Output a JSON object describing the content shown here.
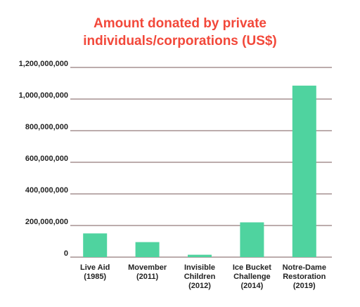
{
  "chart_data": {
    "type": "bar",
    "title_lines": [
      "Amount donated by private",
      "individuals/corporations (US$)"
    ],
    "categories": [
      [
        "Live Aid",
        "(1985)"
      ],
      [
        "Movember",
        "(2011)"
      ],
      [
        "Invisible",
        "Children",
        "(2012)"
      ],
      [
        "Ice Bucket",
        "Challenge",
        "(2014)"
      ],
      [
        "Notre-Dame",
        "Restoration",
        "(2019)"
      ]
    ],
    "values": [
      150000000,
      95000000,
      15000000,
      220000000,
      1085000000
    ],
    "y_ticks": [
      0,
      200000000,
      400000000,
      600000000,
      800000000,
      1000000000,
      1200000000
    ],
    "y_tick_labels": [
      "0",
      "200,000,000",
      "400,000,000",
      "600,000,000",
      "800,000,000",
      "1,000,000,000",
      "1,200,000,000"
    ],
    "ylim": [
      0,
      1200000000
    ],
    "grid": true,
    "colors": {
      "bar": "#4fd39f",
      "title": "#f2483a",
      "grid": "#7a5a5a",
      "text": "#222222"
    }
  }
}
